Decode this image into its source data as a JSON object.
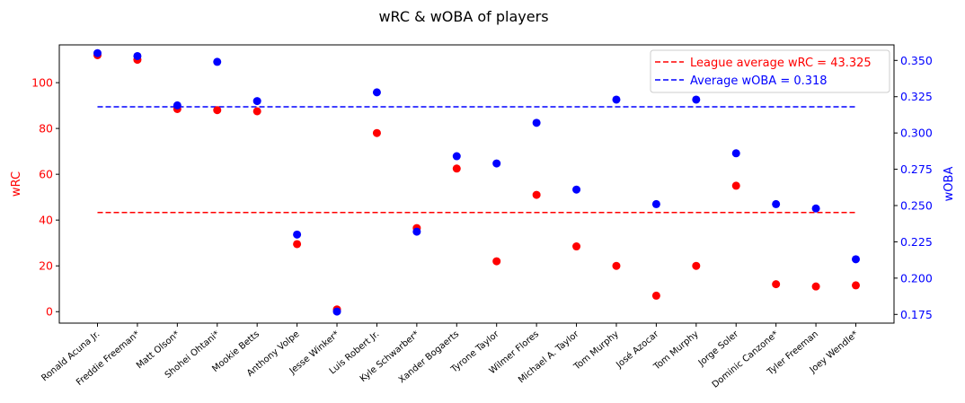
{
  "chart_data": {
    "type": "scatter",
    "title": "wRC & wOBA of players",
    "categories": [
      "Ronald Acuna Jr.",
      "Freddie Freeman*",
      "Matt Olson*",
      "Shohei Ohtani*",
      "Mookie Betts",
      "Anthony Volpe",
      "Jesse Winker*",
      "Luis Robert Jr.",
      "Kyle Schwarber*",
      "Xander Bogaerts",
      "Tyrone Taylor",
      "Wilmer Flores",
      "Michael A. Taylor",
      "Tom Murphy",
      "José Azocar",
      "Tom Murphy",
      "Jorge Soler",
      "Dominic Canzone*",
      "Tyler Freeman",
      "Joey Wendle*"
    ],
    "ylabel_left": "wRC",
    "ylabel_right": "wOBA",
    "ylim_left": [
      -5,
      116.5
    ],
    "ylim_right": [
      0.169,
      0.3607
    ],
    "yticks_left": [
      0,
      20,
      40,
      60,
      80,
      100
    ],
    "yticks_right": [
      0.175,
      0.2,
      0.225,
      0.25,
      0.275,
      0.3,
      0.325,
      0.35
    ],
    "ytick_labels_right": [
      "0.175",
      "0.200",
      "0.225",
      "0.250",
      "0.275",
      "0.300",
      "0.325",
      "0.350"
    ],
    "legend_position": "top-right",
    "grid": false,
    "series": [
      {
        "name": "wRC",
        "axis": "left",
        "color": "#ff0000",
        "values": [
          112,
          110,
          88.5,
          88,
          87.5,
          29.5,
          1,
          78,
          36.5,
          62.5,
          22,
          51,
          28.5,
          20,
          7,
          20,
          55,
          12,
          11,
          11.5
        ]
      },
      {
        "name": "wOBA",
        "axis": "right",
        "color": "#0000ff",
        "values": [
          0.355,
          0.353,
          0.319,
          0.349,
          0.322,
          0.23,
          0.177,
          0.328,
          0.232,
          0.284,
          0.279,
          0.307,
          0.261,
          0.323,
          0.251,
          0.323,
          0.286,
          0.251,
          0.248,
          0.213
        ]
      }
    ],
    "reference_lines": [
      {
        "label": "League average wRC = 43.325",
        "axis": "left",
        "value": 43.325,
        "color": "#ff0000",
        "style": "dashed"
      },
      {
        "label": "Average wOBA = 0.318",
        "axis": "right",
        "value": 0.318,
        "color": "#0000ff",
        "style": "dashed"
      }
    ]
  }
}
